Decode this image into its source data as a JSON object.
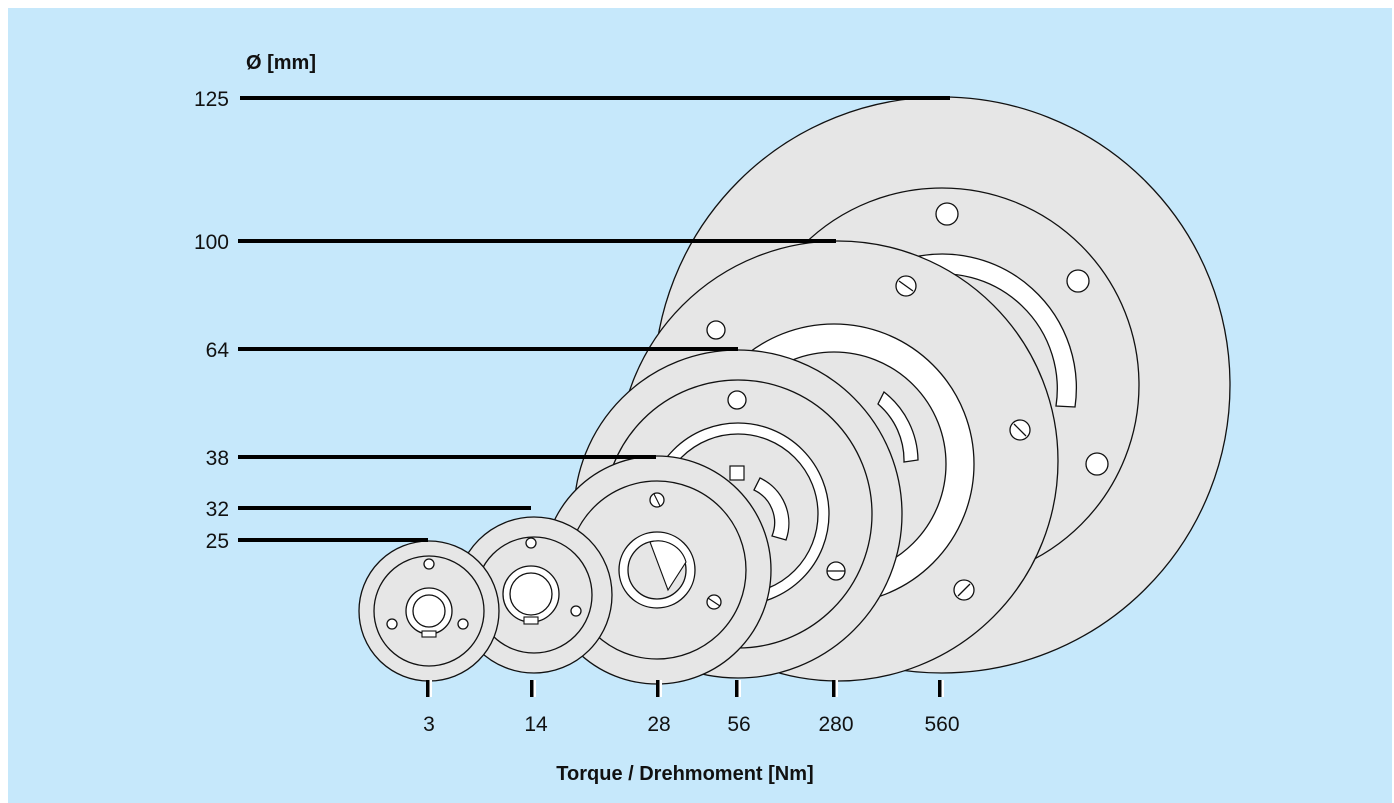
{
  "axes": {
    "y_title": "Ø [mm]",
    "x_title": "Torque / Drehmoment [Nm]"
  },
  "sizes": [
    {
      "diameter": "25",
      "torque": "3"
    },
    {
      "diameter": "32",
      "torque": "14"
    },
    {
      "diameter": "38",
      "torque": "28"
    },
    {
      "diameter": "64",
      "torque": "56"
    },
    {
      "diameter": "100",
      "torque": "280"
    },
    {
      "diameter": "125",
      "torque": "560"
    }
  ]
}
